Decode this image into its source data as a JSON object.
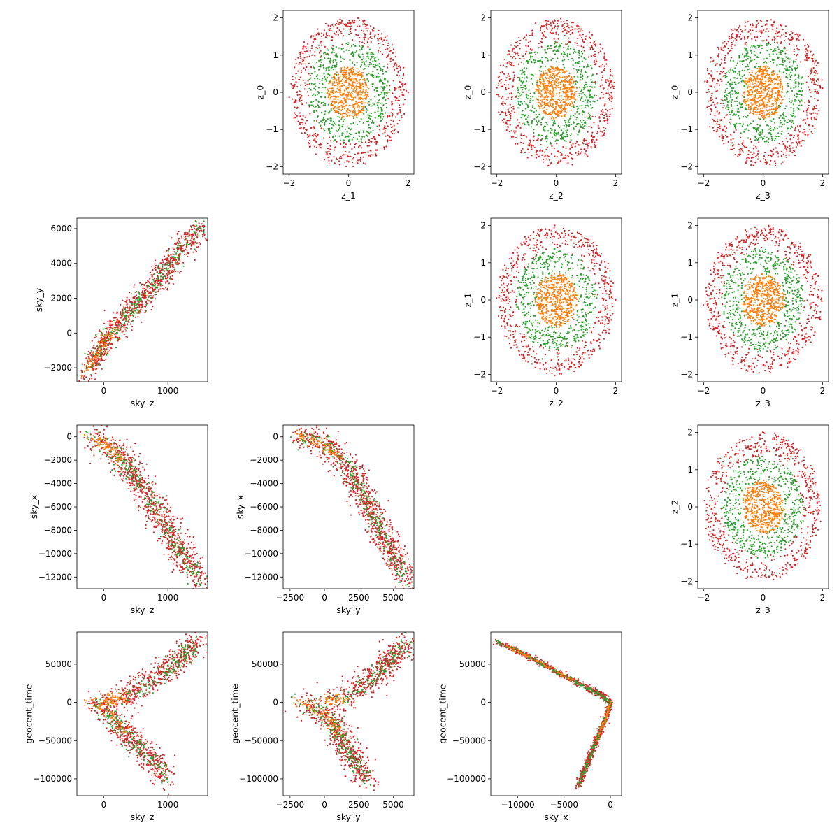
{
  "colors": {
    "red": "#d62728",
    "green": "#2ca02c",
    "orange": "#ff7f0e"
  },
  "chart_data": [
    {
      "type": "scatter",
      "row": 0,
      "col": 1,
      "kind": "circle",
      "xlabel": "z_1",
      "ylabel": "z_0",
      "xlim": [
        -2.2,
        2.2
      ],
      "ylim": [
        -2.2,
        2.2
      ],
      "xticks": [
        -2,
        0,
        2
      ],
      "yticks": [
        -2,
        -1,
        0,
        1,
        2
      ],
      "series": [
        {
          "color": "red",
          "radius_min": 1.3,
          "radius_max": 1.95,
          "count": 600
        },
        {
          "color": "green",
          "radius_min": 0.6,
          "radius_max": 1.35,
          "count": 500
        },
        {
          "color": "orange",
          "radius_min": 0.0,
          "radius_max": 0.7,
          "count": 500
        }
      ]
    },
    {
      "type": "scatter",
      "row": 0,
      "col": 2,
      "kind": "circle",
      "xlabel": "z_2",
      "ylabel": "z_0",
      "xlim": [
        -2.2,
        2.2
      ],
      "ylim": [
        -2.2,
        2.2
      ],
      "xticks": [
        -2,
        0,
        2
      ],
      "yticks": [
        -2,
        -1,
        0,
        1,
        2
      ],
      "series": [
        {
          "color": "red",
          "radius_min": 1.3,
          "radius_max": 1.95,
          "count": 600
        },
        {
          "color": "green",
          "radius_min": 0.6,
          "radius_max": 1.35,
          "count": 500
        },
        {
          "color": "orange",
          "radius_min": 0.0,
          "radius_max": 0.7,
          "count": 500
        }
      ]
    },
    {
      "type": "scatter",
      "row": 0,
      "col": 3,
      "kind": "circle",
      "xlabel": "z_3",
      "ylabel": "z_0",
      "xlim": [
        -2.2,
        2.2
      ],
      "ylim": [
        -2.2,
        2.2
      ],
      "xticks": [
        -2,
        0,
        2
      ],
      "yticks": [
        -2,
        -1,
        0,
        1,
        2
      ],
      "series": [
        {
          "color": "red",
          "radius_min": 1.3,
          "radius_max": 1.95,
          "count": 600
        },
        {
          "color": "green",
          "radius_min": 0.6,
          "radius_max": 1.35,
          "count": 500
        },
        {
          "color": "orange",
          "radius_min": 0.0,
          "radius_max": 0.7,
          "count": 500
        }
      ]
    },
    {
      "type": "scatter",
      "row": 1,
      "col": 0,
      "kind": "path",
      "xlabel": "sky_z",
      "ylabel": "sky_y",
      "xlim": [
        -420,
        1620
      ],
      "ylim": [
        -2800,
        6600
      ],
      "xticks": [
        0,
        1000
      ],
      "yticks": [
        -2000,
        0,
        2000,
        4000,
        6000
      ],
      "path": [
        [
          -300,
          -2200
        ],
        [
          -150,
          -1600
        ],
        [
          0,
          -600
        ],
        [
          200,
          300
        ],
        [
          500,
          1600
        ],
        [
          900,
          3300
        ],
        [
          1300,
          5200
        ],
        [
          1550,
          6100
        ]
      ],
      "series": [
        {
          "color": "red",
          "spread_x": 60,
          "spread_y": 450,
          "count": 900
        },
        {
          "color": "green",
          "spread_x": 40,
          "spread_y": 300,
          "count": 250
        },
        {
          "color": "orange",
          "spread_x": 30,
          "spread_y": 200,
          "count": 80
        }
      ]
    },
    {
      "type": "scatter",
      "row": 1,
      "col": 2,
      "kind": "circle",
      "xlabel": "z_2",
      "ylabel": "z_1",
      "xlim": [
        -2.2,
        2.2
      ],
      "ylim": [
        -2.2,
        2.2
      ],
      "xticks": [
        -2,
        0,
        2
      ],
      "yticks": [
        -2,
        -1,
        0,
        1,
        2
      ],
      "series": [
        {
          "color": "red",
          "radius_min": 1.3,
          "radius_max": 1.95,
          "count": 600
        },
        {
          "color": "green",
          "radius_min": 0.6,
          "radius_max": 1.35,
          "count": 500
        },
        {
          "color": "orange",
          "radius_min": 0.0,
          "radius_max": 0.7,
          "count": 500
        }
      ]
    },
    {
      "type": "scatter",
      "row": 1,
      "col": 3,
      "kind": "circle",
      "xlabel": "z_3",
      "ylabel": "z_1",
      "xlim": [
        -2.2,
        2.2
      ],
      "ylim": [
        -2.2,
        2.2
      ],
      "xticks": [
        -2,
        0,
        2
      ],
      "yticks": [
        -2,
        -1,
        0,
        1,
        2
      ],
      "series": [
        {
          "color": "red",
          "radius_min": 1.3,
          "radius_max": 1.95,
          "count": 600
        },
        {
          "color": "green",
          "radius_min": 0.6,
          "radius_max": 1.35,
          "count": 500
        },
        {
          "color": "orange",
          "radius_min": 0.0,
          "radius_max": 0.7,
          "count": 500
        }
      ]
    },
    {
      "type": "scatter",
      "row": 2,
      "col": 0,
      "kind": "path",
      "xlabel": "sky_z",
      "ylabel": "sky_x",
      "xlim": [
        -420,
        1620
      ],
      "ylim": [
        -13000,
        1000
      ],
      "xticks": [
        0,
        1000
      ],
      "yticks": [
        -12000,
        -10000,
        -8000,
        -6000,
        -4000,
        -2000,
        0
      ],
      "path": [
        [
          -300,
          0
        ],
        [
          -100,
          -300
        ],
        [
          100,
          -900
        ],
        [
          300,
          -2000
        ],
        [
          500,
          -3500
        ],
        [
          800,
          -6000
        ],
        [
          1100,
          -9000
        ],
        [
          1500,
          -12200
        ]
      ],
      "series": [
        {
          "color": "red",
          "spread_x": 90,
          "spread_y": 700,
          "count": 900
        },
        {
          "color": "green",
          "spread_x": 60,
          "spread_y": 450,
          "count": 250
        },
        {
          "color": "orange",
          "spread_x": 40,
          "spread_y": 250,
          "count": 80
        }
      ]
    },
    {
      "type": "scatter",
      "row": 2,
      "col": 1,
      "kind": "path",
      "xlabel": "sky_y",
      "ylabel": "sky_x",
      "xlim": [
        -3000,
        6500
      ],
      "ylim": [
        -13000,
        1000
      ],
      "xticks": [
        -2500,
        0,
        2500,
        5000
      ],
      "yticks": [
        -12000,
        -10000,
        -8000,
        -6000,
        -4000,
        -2000,
        0
      ],
      "path": [
        [
          -2000,
          0
        ],
        [
          -1000,
          -200
        ],
        [
          0,
          -700
        ],
        [
          1000,
          -1700
        ],
        [
          2000,
          -3200
        ],
        [
          3000,
          -5500
        ],
        [
          4500,
          -9000
        ],
        [
          6000,
          -12300
        ]
      ],
      "series": [
        {
          "color": "red",
          "spread_x": 450,
          "spread_y": 700,
          "count": 900
        },
        {
          "color": "green",
          "spread_x": 300,
          "spread_y": 450,
          "count": 250
        },
        {
          "color": "orange",
          "spread_x": 200,
          "spread_y": 250,
          "count": 80
        }
      ]
    },
    {
      "type": "scatter",
      "row": 2,
      "col": 3,
      "kind": "circle",
      "xlabel": "z_3",
      "ylabel": "z_2",
      "xlim": [
        -2.2,
        2.2
      ],
      "ylim": [
        -2.2,
        2.2
      ],
      "xticks": [
        -2,
        0,
        2
      ],
      "yticks": [
        -2,
        -1,
        0,
        1,
        2
      ],
      "series": [
        {
          "color": "red",
          "radius_min": 1.3,
          "radius_max": 1.95,
          "count": 600
        },
        {
          "color": "green",
          "radius_min": 0.6,
          "radius_max": 1.35,
          "count": 500
        },
        {
          "color": "orange",
          "radius_min": 0.0,
          "radius_max": 0.7,
          "count": 500
        }
      ]
    },
    {
      "type": "scatter",
      "row": 3,
      "col": 0,
      "kind": "fork",
      "xlabel": "sky_z",
      "ylabel": "geocent_time",
      "xlim": [
        -420,
        1620
      ],
      "ylim": [
        -122000,
        92000
      ],
      "xticks": [
        0,
        1000
      ],
      "yticks": [
        -100000,
        -50000,
        0,
        50000
      ],
      "branches": [
        [
          [
            -350,
            0
          ],
          [
            0,
            0
          ],
          [
            300,
            5000
          ],
          [
            700,
            25000
          ],
          [
            1100,
            50000
          ],
          [
            1500,
            80000
          ]
        ],
        [
          [
            -150,
            0
          ],
          [
            100,
            -15000
          ],
          [
            350,
            -40000
          ],
          [
            700,
            -70000
          ],
          [
            1000,
            -100000
          ]
        ]
      ],
      "series": [
        {
          "color": "red",
          "spread_x": 90,
          "spread_y": 9000,
          "count": 1000
        },
        {
          "color": "green",
          "spread_x": 60,
          "spread_y": 6000,
          "count": 300
        },
        {
          "color": "orange",
          "spread_x": 40,
          "spread_y": 4000,
          "count": 120
        }
      ]
    },
    {
      "type": "scatter",
      "row": 3,
      "col": 1,
      "kind": "fork",
      "xlabel": "sky_y",
      "ylabel": "geocent_time",
      "xlim": [
        -3000,
        6500
      ],
      "ylim": [
        -122000,
        92000
      ],
      "xticks": [
        -2500,
        0,
        2500,
        5000
      ],
      "yticks": [
        -100000,
        -50000,
        0,
        50000
      ],
      "branches": [
        [
          [
            -2300,
            0
          ],
          [
            0,
            0
          ],
          [
            1500,
            5000
          ],
          [
            3000,
            25000
          ],
          [
            4500,
            50000
          ],
          [
            6000,
            80000
          ]
        ],
        [
          [
            -1500,
            0
          ],
          [
            0,
            -15000
          ],
          [
            1000,
            -40000
          ],
          [
            2000,
            -70000
          ],
          [
            3000,
            -100000
          ]
        ]
      ],
      "series": [
        {
          "color": "red",
          "spread_x": 450,
          "spread_y": 9000,
          "count": 1000
        },
        {
          "color": "green",
          "spread_x": 300,
          "spread_y": 6000,
          "count": 300
        },
        {
          "color": "orange",
          "spread_x": 200,
          "spread_y": 4000,
          "count": 120
        }
      ]
    },
    {
      "type": "scatter",
      "row": 3,
      "col": 2,
      "kind": "fork",
      "xlabel": "sky_x",
      "ylabel": "geocent_time",
      "xlim": [
        -12900,
        1200
      ],
      "ylim": [
        -122000,
        92000
      ],
      "xticks": [
        -10000,
        -5000,
        0
      ],
      "yticks": [
        -100000,
        -50000,
        0,
        50000
      ],
      "branches": [
        [
          [
            -12300,
            80000
          ],
          [
            -8000,
            55000
          ],
          [
            -4000,
            28000
          ],
          [
            -1000,
            10000
          ],
          [
            0,
            0
          ]
        ],
        [
          [
            0,
            0
          ],
          [
            -500,
            -20000
          ],
          [
            -1500,
            -50000
          ],
          [
            -2500,
            -80000
          ],
          [
            -3500,
            -110000
          ]
        ]
      ],
      "series": [
        {
          "color": "red",
          "spread_x": 150,
          "spread_y": 2000,
          "count": 1000
        },
        {
          "color": "green",
          "spread_x": 100,
          "spread_y": 1500,
          "count": 300
        },
        {
          "color": "orange",
          "spread_x": 80,
          "spread_y": 1000,
          "count": 120
        }
      ]
    }
  ]
}
